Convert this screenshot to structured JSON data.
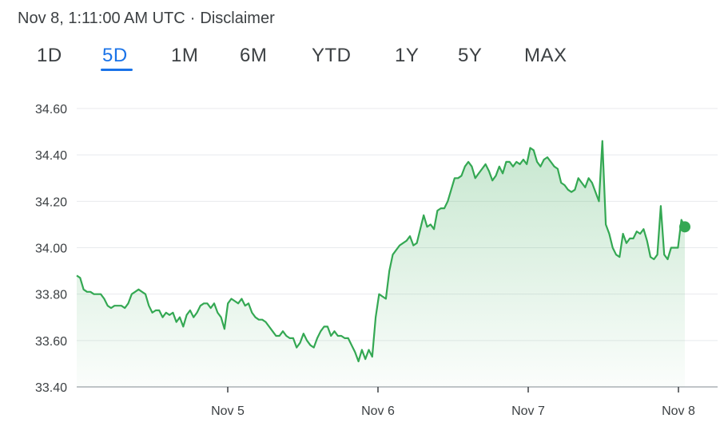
{
  "header": {
    "timestamp": "Nov 8, 1:11:00 AM UTC",
    "separator": "·",
    "disclaimer": "Disclaimer"
  },
  "tabs": [
    {
      "label": "1D",
      "active": false
    },
    {
      "label": "5D",
      "active": true
    },
    {
      "label": "1M",
      "active": false
    },
    {
      "label": "6M",
      "active": false
    },
    {
      "label": "YTD",
      "active": false
    },
    {
      "label": "1Y",
      "active": false
    },
    {
      "label": "5Y",
      "active": false
    },
    {
      "label": "MAX",
      "active": false
    }
  ],
  "colors": {
    "line": "#34a853",
    "accent": "#1a73e8",
    "grid": "#e8eaed",
    "axis": "#3c4043"
  },
  "chart_data": {
    "type": "area",
    "title": "",
    "xlabel": "",
    "ylabel": "",
    "ylim": [
      33.4,
      34.6
    ],
    "yticks": [
      "34.60",
      "34.40",
      "34.20",
      "34.00",
      "33.80",
      "33.60",
      "33.40"
    ],
    "yvalues": [
      34.6,
      34.4,
      34.2,
      34.0,
      33.8,
      33.6,
      33.4
    ],
    "xticks": [
      "Nov 5",
      "Nov 6",
      "Nov 7",
      "Nov 8"
    ],
    "grid": true,
    "series": [
      {
        "values": [
          33.88,
          33.87,
          33.82,
          33.81,
          33.81,
          33.8,
          33.8,
          33.8,
          33.78,
          33.75,
          33.74,
          33.75,
          33.75,
          33.75,
          33.74,
          33.76,
          33.8,
          33.81,
          33.82,
          33.81,
          33.8,
          33.75,
          33.72,
          33.73,
          33.73,
          33.7,
          33.72,
          33.71,
          33.72,
          33.68,
          33.7,
          33.66,
          33.71,
          33.73,
          33.7,
          33.72,
          33.75,
          33.76,
          33.76,
          33.74,
          33.76,
          33.72,
          33.7,
          33.65,
          33.76,
          33.78,
          33.77,
          33.76,
          33.78,
          33.75,
          33.76,
          33.72,
          33.7,
          33.69,
          33.69,
          33.68,
          33.66,
          33.64,
          33.62,
          33.62,
          33.64,
          33.62,
          33.61,
          33.61,
          33.57,
          33.59,
          33.63,
          33.6,
          33.58,
          33.57,
          33.61,
          33.64,
          33.66,
          33.66,
          33.62,
          33.64,
          33.62,
          33.62,
          33.61,
          33.61,
          33.58,
          33.55,
          33.51,
          33.56,
          33.52,
          33.56,
          33.53,
          33.7,
          33.8,
          33.79,
          33.78,
          33.9,
          33.97,
          33.99,
          34.01,
          34.02,
          34.03,
          34.05,
          34.01,
          34.02,
          34.08,
          34.14,
          34.09,
          34.1,
          34.08,
          34.16,
          34.17,
          34.17,
          34.2,
          34.25,
          34.3,
          34.3,
          34.31,
          34.35,
          34.37,
          34.35,
          34.3,
          34.32,
          34.34,
          34.36,
          34.33,
          34.29,
          34.31,
          34.35,
          34.32,
          34.37,
          34.37,
          34.35,
          34.37,
          34.36,
          34.38,
          34.36,
          34.43,
          34.42,
          34.37,
          34.35,
          34.38,
          34.39,
          34.37,
          34.35,
          34.34,
          34.28,
          34.27,
          34.25,
          34.24,
          34.25,
          34.3,
          34.28,
          34.26,
          34.3,
          34.28,
          34.24,
          34.2,
          34.46,
          34.1,
          34.06,
          34.0,
          33.97,
          33.96,
          34.06,
          34.02,
          34.04,
          34.04,
          34.07,
          34.06,
          34.08,
          34.03,
          33.96,
          33.95,
          33.97,
          34.18,
          33.97,
          33.95,
          34.0,
          34.0,
          34.0,
          34.12,
          34.09
        ],
        "last_value": 34.09
      }
    ]
  }
}
